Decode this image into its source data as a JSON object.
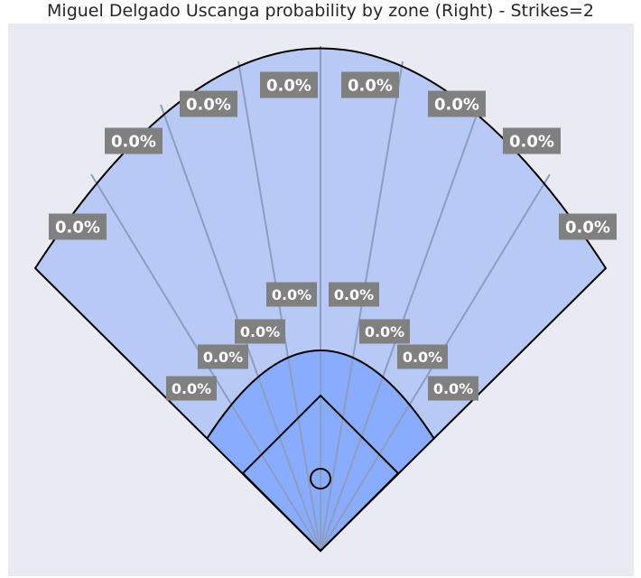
{
  "chart_data": {
    "type": "spray-field",
    "title": "Miguel Delgado Uscanga probability by zone (Right) - Strikes=2",
    "xlabel": "",
    "ylabel": "",
    "grid": false,
    "zones": {
      "outfield": [
        "0.0%",
        "0.0%",
        "0.0%",
        "0.0%",
        "0.0%",
        "0.0%",
        "0.0%",
        "0.0%"
      ],
      "infield": [
        "0.0%",
        "0.0%",
        "0.0%",
        "0.0%",
        "0.0%",
        "0.0%",
        "0.0%",
        "0.0%"
      ]
    },
    "colors": {
      "background": "#eaeaf2",
      "outfield": "#b9c9f5",
      "infield": "#8aacff",
      "zone_line": "#8d9cc2",
      "label_box": "#808080",
      "label_text": "#ffffff"
    }
  }
}
